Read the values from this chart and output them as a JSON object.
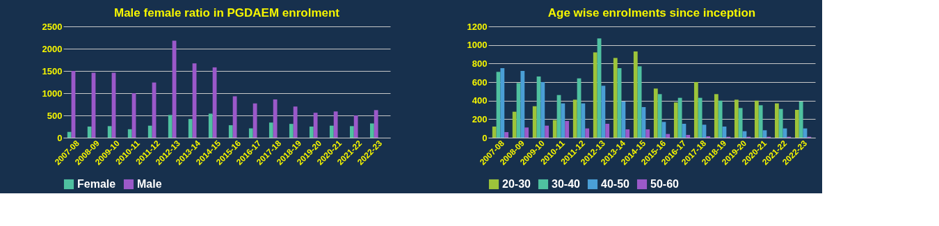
{
  "chart_data": [
    {
      "type": "bar",
      "title": "Male female ratio in PGDAEM enrolment",
      "categories": [
        "2007-08",
        "2008-09",
        "2009-10",
        "2010-11",
        "2011-12",
        "2012-13",
        "2013-14",
        "2014-15",
        "2015-16",
        "2016-17",
        "2017-18",
        "2018-19",
        "2019-20",
        "2020-21",
        "2021-22",
        "2022-23"
      ],
      "series": [
        {
          "name": "Female",
          "color": "#4fc1a0",
          "values": [
            130,
            250,
            260,
            190,
            270,
            510,
            420,
            540,
            280,
            210,
            340,
            310,
            250,
            270,
            260,
            320
          ]
        },
        {
          "name": "Male",
          "color": "#9b59c9",
          "values": [
            1500,
            1460,
            1460,
            1000,
            1240,
            2180,
            1670,
            1580,
            930,
            770,
            860,
            700,
            560,
            590,
            500,
            620
          ]
        }
      ],
      "ylim": [
        0,
        2500
      ],
      "yticks": [
        0,
        500,
        1000,
        1500,
        2000,
        2500
      ],
      "grid": "y",
      "legend": "bottom"
    },
    {
      "type": "bar",
      "title": "Age wise enrolments since inception",
      "categories": [
        "2007-08",
        "2008-09",
        "2009-10",
        "2010-11",
        "2011-12",
        "2012-13",
        "2013-14",
        "2014-15",
        "2015-16",
        "2016-17",
        "2017-18",
        "2018-19",
        "2019-20",
        "2020-21",
        "2021-22",
        "2022-23"
      ],
      "series": [
        {
          "name": "20-30",
          "color": "#9dc43a",
          "values": [
            120,
            280,
            340,
            190,
            410,
            920,
            860,
            930,
            530,
            380,
            600,
            470,
            410,
            400,
            370,
            300
          ]
        },
        {
          "name": "30-40",
          "color": "#4fc1a0",
          "values": [
            710,
            590,
            660,
            460,
            640,
            1070,
            750,
            770,
            470,
            430,
            430,
            400,
            320,
            350,
            310,
            390
          ]
        },
        {
          "name": "40-50",
          "color": "#4a9fd6",
          "values": [
            750,
            720,
            600,
            370,
            370,
            560,
            390,
            330,
            170,
            150,
            140,
            120,
            70,
            80,
            100,
            100
          ]
        },
        {
          "name": "50-60",
          "color": "#9b59c9",
          "values": [
            60,
            110,
            130,
            180,
            100,
            150,
            90,
            90,
            40,
            30,
            15,
            10,
            10,
            10,
            10,
            10
          ]
        }
      ],
      "ylim": [
        0,
        1200
      ],
      "yticks": [
        0,
        200,
        400,
        600,
        800,
        1000,
        1200
      ],
      "grid": "y",
      "legend": "bottom"
    }
  ]
}
